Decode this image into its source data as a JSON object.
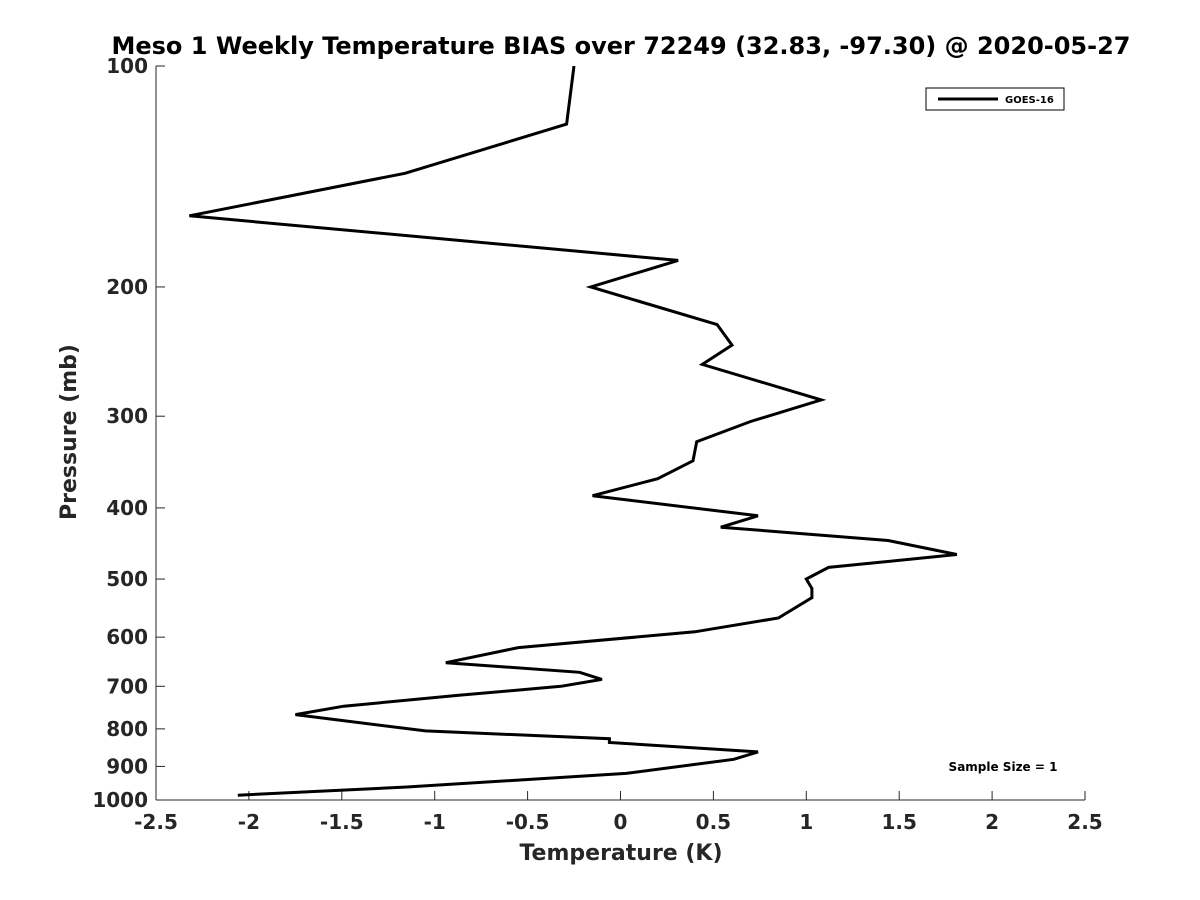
{
  "chart_data": {
    "type": "line",
    "title": "Meso 1 Weekly Temperature BIAS over 72249 (32.83, -97.30) @ 2020-05-27",
    "xlabel": "Temperature (K)",
    "ylabel": "Pressure (mb)",
    "xlim": [
      -2.5,
      2.5
    ],
    "ylim": [
      100,
      1000
    ],
    "y_scale": "log",
    "y_reversed": true,
    "x_ticks": [
      -2.5,
      -2,
      -1.5,
      -1,
      -0.5,
      0,
      0.5,
      1,
      1.5,
      2,
      2.5
    ],
    "x_tick_labels": [
      "-2.5",
      "-2",
      "-1.5",
      "-1",
      "-0.5",
      "0",
      "0.5",
      "1",
      "1.5",
      "2",
      "2.5"
    ],
    "y_ticks": [
      100,
      200,
      300,
      400,
      500,
      600,
      700,
      800,
      900,
      1000
    ],
    "y_tick_labels": [
      "100",
      "200",
      "300",
      "400",
      "500",
      "600",
      "700",
      "800",
      "900",
      "1000"
    ],
    "grid": false,
    "legend_position": "top-right",
    "annotation": "Sample Size = 1",
    "series": [
      {
        "name": "GOES-16",
        "color": "#000000",
        "points": [
          {
            "x": -0.25,
            "y": 100
          },
          {
            "x": -0.29,
            "y": 120
          },
          {
            "x": -1.16,
            "y": 140
          },
          {
            "x": -2.32,
            "y": 160
          },
          {
            "x": 0.31,
            "y": 184
          },
          {
            "x": -0.16,
            "y": 200
          },
          {
            "x": 0.52,
            "y": 225
          },
          {
            "x": 0.6,
            "y": 240
          },
          {
            "x": 0.44,
            "y": 255
          },
          {
            "x": 1.08,
            "y": 285
          },
          {
            "x": 0.7,
            "y": 305
          },
          {
            "x": 0.41,
            "y": 325
          },
          {
            "x": 0.39,
            "y": 345
          },
          {
            "x": 0.2,
            "y": 365
          },
          {
            "x": -0.15,
            "y": 385
          },
          {
            "x": 0.74,
            "y": 410
          },
          {
            "x": 0.54,
            "y": 425
          },
          {
            "x": 1.44,
            "y": 443
          },
          {
            "x": 1.81,
            "y": 463
          },
          {
            "x": 1.12,
            "y": 482
          },
          {
            "x": 1.0,
            "y": 500
          },
          {
            "x": 1.03,
            "y": 515
          },
          {
            "x": 1.03,
            "y": 530
          },
          {
            "x": 0.85,
            "y": 565
          },
          {
            "x": 0.4,
            "y": 590
          },
          {
            "x": -0.55,
            "y": 620
          },
          {
            "x": -0.94,
            "y": 650
          },
          {
            "x": -0.22,
            "y": 670
          },
          {
            "x": -0.1,
            "y": 685
          },
          {
            "x": -0.32,
            "y": 700
          },
          {
            "x": -0.87,
            "y": 720
          },
          {
            "x": -1.49,
            "y": 745
          },
          {
            "x": -1.75,
            "y": 765
          },
          {
            "x": -1.05,
            "y": 805
          },
          {
            "x": -0.06,
            "y": 825
          },
          {
            "x": -0.06,
            "y": 835
          },
          {
            "x": 0.74,
            "y": 860
          },
          {
            "x": 0.61,
            "y": 880
          },
          {
            "x": 0.03,
            "y": 920
          },
          {
            "x": -1.15,
            "y": 960
          },
          {
            "x": -2.06,
            "y": 985
          }
        ]
      }
    ]
  }
}
